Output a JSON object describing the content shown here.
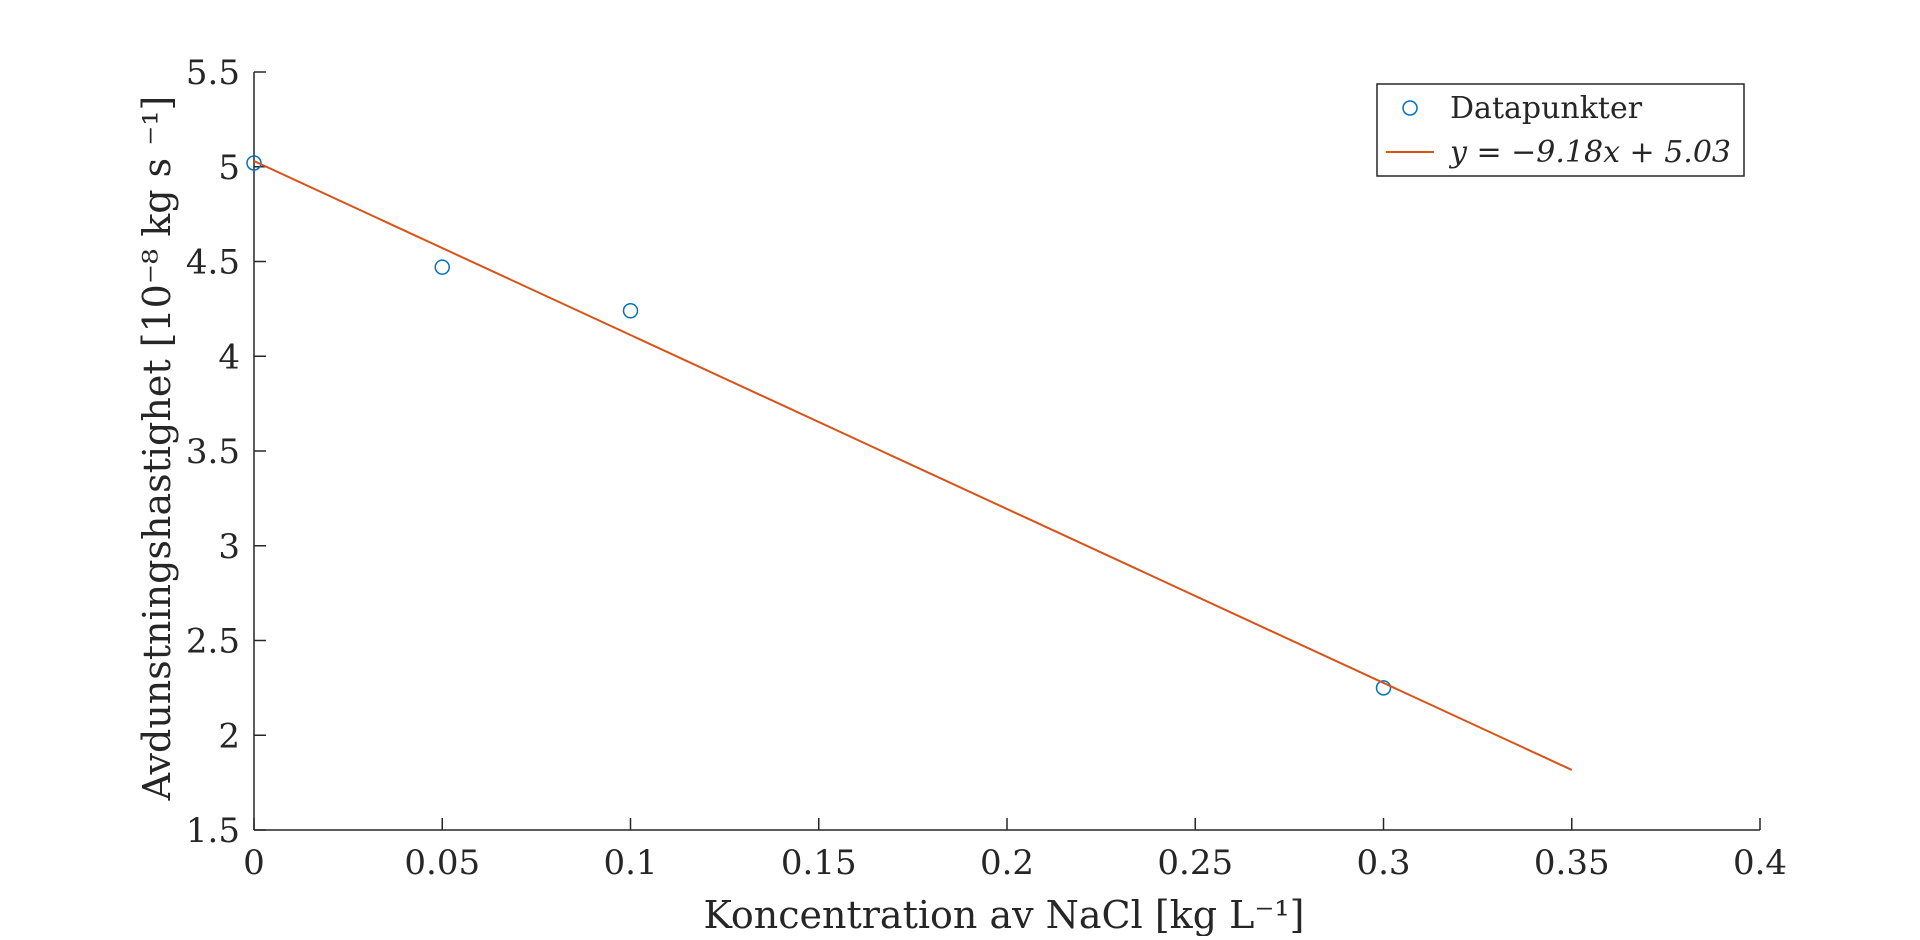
{
  "chart_data": {
    "type": "scatter",
    "title": "",
    "xlabel": "Koncentration av NaCl [kg L⁻¹]",
    "ylabel": "Avdunstningshastighet [10⁻⁸ kg s ⁻¹]",
    "xlim": [
      0,
      0.4
    ],
    "ylim": [
      1.5,
      5.5
    ],
    "xticks": [
      0,
      0.05,
      0.1,
      0.15,
      0.2,
      0.25,
      0.3,
      0.35,
      0.4
    ],
    "xtick_labels": [
      "0",
      "0.05",
      "0.1",
      "0.15",
      "0.2",
      "0.25",
      "0.3",
      "0.35",
      "0.4"
    ],
    "yticks": [
      1.5,
      2,
      2.5,
      3,
      3.5,
      4,
      4.5,
      5,
      5.5
    ],
    "ytick_labels": [
      "1.5",
      "2",
      "2.5",
      "3",
      "3.5",
      "4",
      "4.5",
      "5",
      "5.5"
    ],
    "grid": false,
    "legend_position": "top-right",
    "series": [
      {
        "name": "Datapunkter",
        "kind": "scatter",
        "marker": "open-circle",
        "color": "#0072BD",
        "x": [
          0,
          0.05,
          0.1,
          0.3
        ],
        "y": [
          5.02,
          4.47,
          4.24,
          2.25
        ]
      },
      {
        "name": "y = −9.18x + 5.03",
        "kind": "line",
        "color": "#D95319",
        "x": [
          0,
          0.35
        ],
        "y": [
          5.03,
          1.817
        ]
      }
    ]
  }
}
